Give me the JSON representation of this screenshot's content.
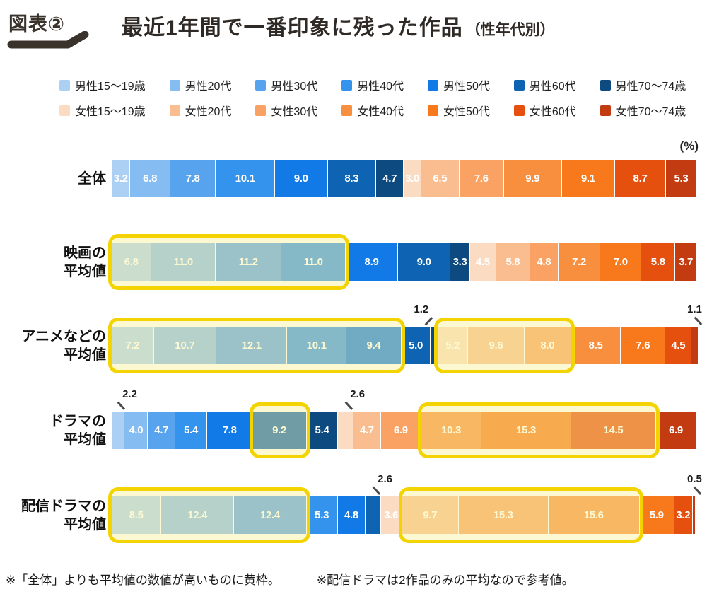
{
  "header": {
    "badge": "図表②",
    "title": "最近1年間で一番印象に残った作品",
    "title_suffix": "（性年代別）"
  },
  "unit_label": "(%)",
  "legend": {
    "male_labels": [
      "男性15〜19歳",
      "男性20代",
      "男性30代",
      "男性40代",
      "男性50代",
      "男性60代",
      "男性70〜74歳"
    ],
    "female_labels": [
      "女性15〜19歳",
      "女性20代",
      "女性30代",
      "女性40代",
      "女性50代",
      "女性60代",
      "女性70〜74歳"
    ]
  },
  "colors": {
    "male": [
      "#abd0f4",
      "#85bcf2",
      "#57a3ee",
      "#3493ec",
      "#117ae6",
      "#0e63b2",
      "#0c4a80"
    ],
    "female": [
      "#fbdcc2",
      "#f9bd90",
      "#f9a263",
      "#f88f3e",
      "#f7791c",
      "#e5500e",
      "#c33b10"
    ],
    "highlight_border": "#f3d402",
    "highlight_fill": "rgba(249,238,148,0.42)"
  },
  "chart_data": {
    "type": "bar",
    "stacked": true,
    "orientation": "horizontal",
    "unit": "%",
    "xlim": [
      0,
      100
    ],
    "legend_position": "top",
    "categories": [
      "男性15〜19歳",
      "男性20代",
      "男性30代",
      "男性40代",
      "男性50代",
      "男性60代",
      "男性70〜74歳",
      "女性15〜19歳",
      "女性20代",
      "女性30代",
      "女性40代",
      "女性50代",
      "女性60代",
      "女性70〜74歳"
    ],
    "rows": [
      {
        "label": "全体",
        "label_lines": [
          "全体"
        ],
        "values": [
          3.2,
          6.8,
          7.8,
          10.1,
          9.0,
          8.3,
          4.7,
          3.0,
          6.5,
          7.6,
          9.9,
          9.1,
          8.7,
          5.3
        ],
        "highlights": [],
        "callouts": []
      },
      {
        "label": "映画の平均値",
        "label_lines": [
          "映画の",
          "平均値"
        ],
        "values": [
          6.8,
          11.0,
          11.2,
          11.0,
          8.9,
          9.0,
          3.3,
          4.5,
          5.8,
          4.8,
          7.2,
          7.0,
          5.8,
          3.7
        ],
        "highlights": [
          [
            0,
            3
          ]
        ],
        "callouts": []
      },
      {
        "label": "アニメなどの平均値",
        "label_lines": [
          "アニメなどの",
          "平均値"
        ],
        "values": [
          7.2,
          10.7,
          12.1,
          10.1,
          9.4,
          5.0,
          1.2,
          5.2,
          9.6,
          8.0,
          8.5,
          7.6,
          4.5,
          1.1
        ],
        "highlights": [
          [
            0,
            4
          ],
          [
            7,
            9
          ]
        ],
        "callouts": [
          {
            "index": 6,
            "dir": "left"
          },
          {
            "index": 13,
            "dir": "right"
          }
        ]
      },
      {
        "label": "ドラマの平均値",
        "label_lines": [
          "ドラマの",
          "平均値"
        ],
        "values": [
          2.2,
          4.0,
          4.7,
          5.4,
          7.8,
          9.2,
          5.4,
          2.6,
          4.7,
          6.9,
          10.3,
          15.3,
          14.5,
          6.9
        ],
        "highlights": [
          [
            5,
            5
          ],
          [
            10,
            12
          ]
        ],
        "callouts": [
          {
            "index": 0,
            "dir": "right"
          },
          {
            "index": 7,
            "dir": "right"
          }
        ]
      },
      {
        "label": "配信ドラマの平均値",
        "label_lines": [
          "配信ドラマの",
          "平均値"
        ],
        "values": [
          8.5,
          12.4,
          12.4,
          5.3,
          4.8,
          2.6,
          0.0,
          3.6,
          9.7,
          15.3,
          15.6,
          5.9,
          3.2,
          0.5
        ],
        "highlights": [
          [
            0,
            2
          ],
          [
            8,
            10
          ]
        ],
        "callouts": [
          {
            "index": 5,
            "dir": "right"
          },
          {
            "index": 13,
            "dir": "right"
          }
        ]
      }
    ]
  },
  "footnotes": [
    "※「全体」よりも平均値の数値が高いものに黄枠。",
    "※配信ドラマは2作品のみの平均なので参考値。"
  ]
}
